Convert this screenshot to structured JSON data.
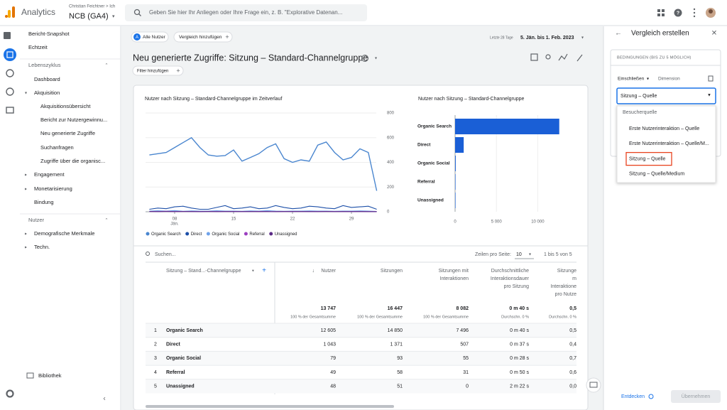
{
  "header": {
    "product": "Analytics",
    "account_path": "Christian Feichtner > Ich",
    "property": "NCB (GA4)",
    "search_placeholder": "Geben Sie hier Ihr Anliegen oder Ihre Frage ein, z. B. \"Explorative Datenan..."
  },
  "nav": {
    "items": [
      "Bericht-Snapshot",
      "Echtzeit",
      "Lebenszyklus",
      "Dashboard",
      "Akquisition",
      "Akquisitionsübersicht",
      "Bericht zur Nutzergewinnu...",
      "Neu generierte Zugriffe",
      "Suchanfragen",
      "Zugriffe über die organisc...",
      "Engagement",
      "Monetarisierung",
      "Bindung",
      "Nutzer",
      "Demografische Merkmale",
      "Techn."
    ],
    "library": "Bibliothek"
  },
  "toolbar": {
    "segment_badge": "A",
    "segment": "Alle Nutzer",
    "add_comparison": "Vergleich hinzufügen",
    "date_range_label": "Letzte 28 Tage",
    "date_range": "5. Jän. bis 1. Feb. 2023"
  },
  "report": {
    "title": "Neu generierte Zugriffe: Sitzung – Standard-Channelgruppe",
    "filter": "Filter hinzufügen"
  },
  "chart_data": [
    {
      "type": "line",
      "title": "Nutzer nach Sitzung – Standard-Channelgruppe im Zeitverlauf",
      "categories": [
        null,
        null,
        null,
        "08",
        null,
        null,
        null,
        null,
        null,
        null,
        "15",
        null,
        null,
        null,
        null,
        null,
        null,
        "22",
        null,
        null,
        null,
        null,
        null,
        null,
        "29",
        null,
        null,
        null
      ],
      "month_label": "Jän.",
      "ylim": [
        0,
        800
      ],
      "yticks": [
        0,
        200,
        400,
        600,
        800
      ],
      "series": [
        {
          "name": "Organic Search",
          "color": "#4a86cf",
          "values": [
            460,
            470,
            480,
            520,
            560,
            600,
            520,
            460,
            450,
            455,
            500,
            410,
            440,
            470,
            520,
            550,
            430,
            400,
            420,
            410,
            540,
            565,
            480,
            420,
            440,
            510,
            480,
            170
          ]
        },
        {
          "name": "Direct",
          "color": "#1c4fa8",
          "values": [
            20,
            30,
            25,
            40,
            45,
            30,
            20,
            20,
            35,
            50,
            25,
            30,
            40,
            25,
            30,
            50,
            35,
            25,
            30,
            45,
            40,
            30,
            25,
            50,
            35,
            40,
            45,
            20
          ]
        },
        {
          "name": "Organic Social",
          "color": "#6fa2ea",
          "values": [
            5,
            8,
            6,
            10,
            4,
            7,
            5,
            6,
            8,
            5,
            6,
            4,
            7,
            5,
            9,
            6,
            4,
            5,
            6,
            7,
            5,
            6,
            4,
            5,
            6,
            7,
            5,
            3
          ]
        },
        {
          "name": "Referral",
          "color": "#9c3fc0",
          "values": [
            3,
            2,
            4,
            2,
            3,
            2,
            1,
            3,
            2,
            2,
            3,
            1,
            2,
            3,
            2,
            1,
            2,
            3,
            2,
            1,
            2,
            3,
            2,
            1,
            2,
            2,
            1,
            1
          ]
        },
        {
          "name": "Unassigned",
          "color": "#5b2a86",
          "values": [
            2,
            1,
            2,
            1,
            2,
            2,
            1,
            2,
            1,
            2,
            1,
            2,
            2,
            1,
            2,
            1,
            2,
            1,
            2,
            2,
            1,
            2,
            1,
            2,
            1,
            2,
            1,
            1
          ]
        }
      ]
    },
    {
      "type": "hbar",
      "title": "Nutzer nach Sitzung – Standard-Channelgruppe",
      "categories": [
        "Organic Search",
        "Direct",
        "Organic Social",
        "Referral",
        "Unassigned"
      ],
      "values": [
        12605,
        1043,
        79,
        49,
        48
      ],
      "color": "#1a5fd6",
      "xlim": [
        0,
        12800
      ],
      "xticks": [
        0,
        {
          "value": 5000,
          "label": "5 000"
        },
        {
          "value": 10000,
          "label": "10 000"
        }
      ]
    }
  ],
  "table": {
    "search": "Suchen...",
    "rows_per_page_label": "Zeilen pro Seite:",
    "rows_per_page": "10",
    "pagination": "1 bis 5 von 5",
    "dimension_header": "Sitzung – Stand...-Channelgruppe",
    "columns": [
      [
        "Nutzer"
      ],
      [
        "Sitzungen"
      ],
      [
        "Sitzungen mit",
        "Interaktionen"
      ],
      [
        "Durchschnittliche",
        "Interaktionsdauer",
        "pro Sitzung"
      ],
      [
        "Sitzunge",
        "m",
        "Interaktione",
        "pro Nutze"
      ]
    ],
    "totals": [
      "13 747",
      "16 447",
      "8 082",
      "0 m 40 s",
      "0,5"
    ],
    "totals_notes": [
      "100 % der Gesamtsumme",
      "100 % der Gesamtsumme",
      "100 % der Gesamtsumme",
      "Durchschn. 0 %",
      "Durchschn. 0 %"
    ],
    "rows": [
      [
        "1",
        "Organic Search",
        "12 605",
        "14 850",
        "7 496",
        "0 m 40 s",
        "0,5"
      ],
      [
        "2",
        "Direct",
        "1 043",
        "1 371",
        "507",
        "0 m 37 s",
        "0,4"
      ],
      [
        "3",
        "Organic Social",
        "79",
        "93",
        "55",
        "0 m 28 s",
        "0,7"
      ],
      [
        "4",
        "Referral",
        "49",
        "58",
        "31",
        "0 m 50 s",
        "0,6"
      ],
      [
        "5",
        "Unassigned",
        "48",
        "51",
        "0",
        "2 m 22 s",
        "0,0"
      ]
    ]
  },
  "panel": {
    "title": "Vergleich erstellen",
    "conditions": "BEDINGUNGEN (BIS ZU 5 MÖGLICH)",
    "include": "Einschließen",
    "dimension": "Dimension",
    "selected": "Sitzung – Quelle",
    "dropdown_group": "Besucherquelle",
    "options": [
      "Erste Nutzerinteraktion – Quelle",
      "Erste Nutzerinteraktion – Quelle/M...",
      "Sitzung – Quelle",
      "Sitzung – Quelle/Medium"
    ],
    "explore": "Entdecken",
    "apply": "Übernehmen"
  }
}
